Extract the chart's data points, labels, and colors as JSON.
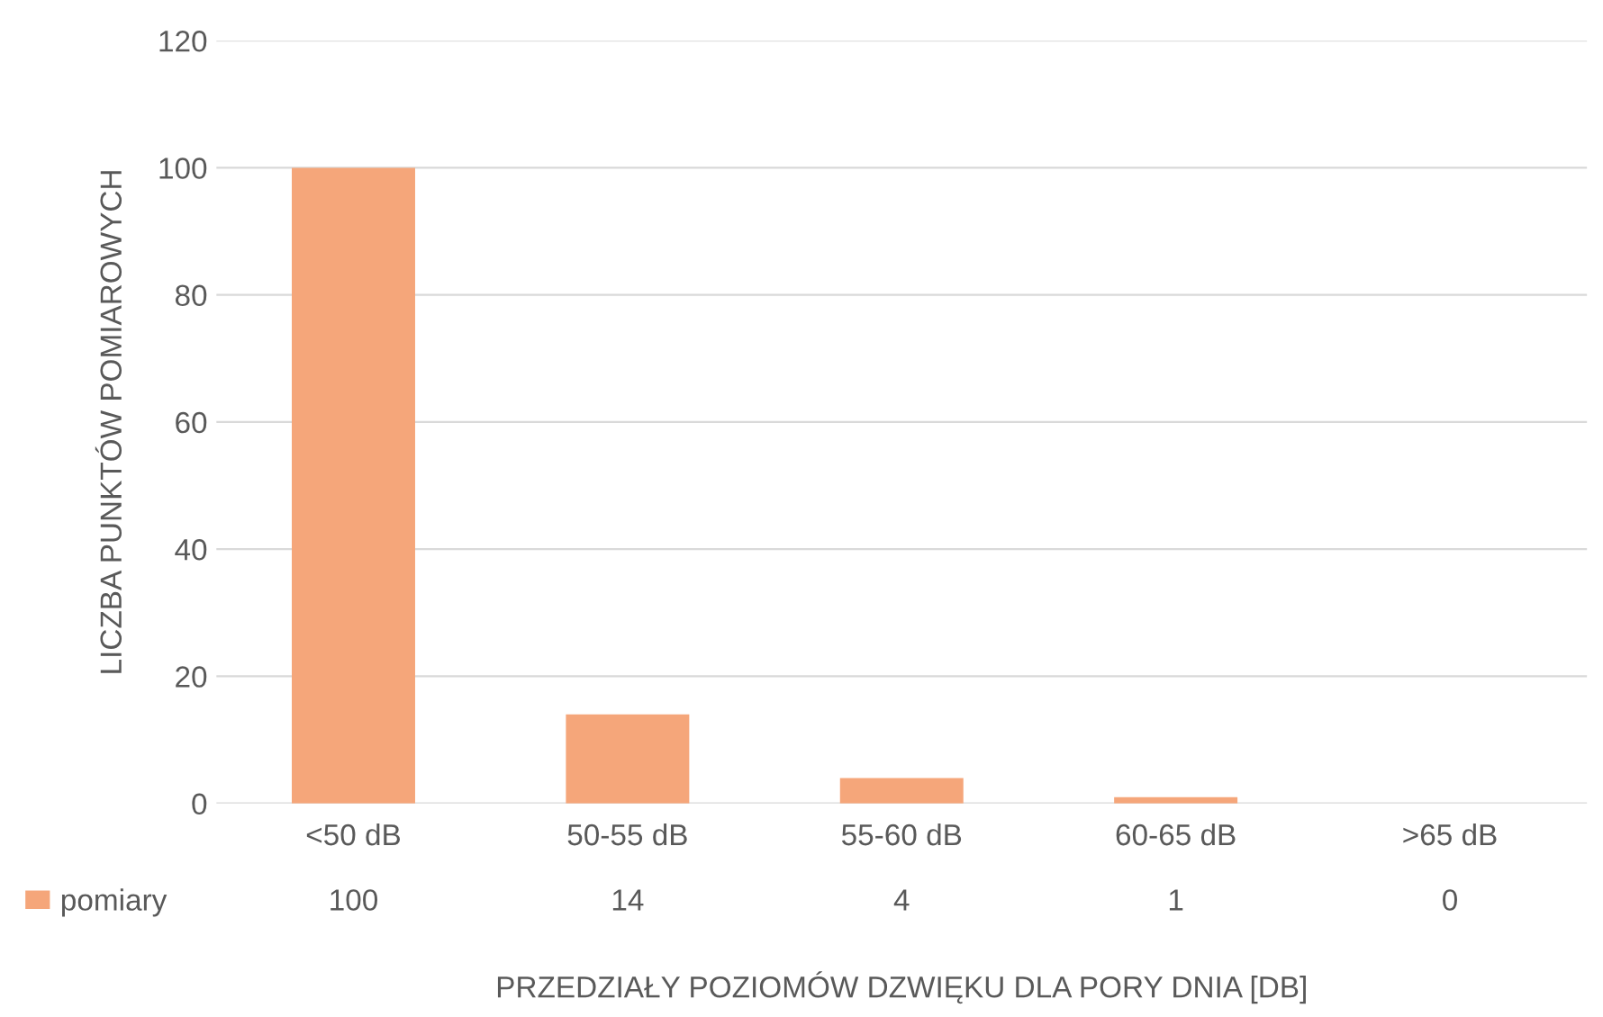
{
  "chart_data": {
    "type": "bar",
    "xlabel": "PRZEDZIAŁY POZIOMÓW DZWIĘKU DLA PORY DNIA [DB]",
    "ylabel": "LICZBA PUNKTÓW POMIAROWYCH",
    "categories": [
      "<50 dB",
      "50-55 dB",
      "55-60 dB",
      "60-65 dB",
      ">65 dB"
    ],
    "series": [
      {
        "name": "pomiary",
        "color": "#f5a67a",
        "values": [
          100,
          14,
          4,
          1,
          0
        ]
      }
    ],
    "ylim": [
      0,
      120
    ],
    "yticks": [
      0,
      20,
      40,
      60,
      80,
      100,
      120
    ],
    "grid": "y",
    "legend": "bottom left",
    "data_labels": true
  }
}
